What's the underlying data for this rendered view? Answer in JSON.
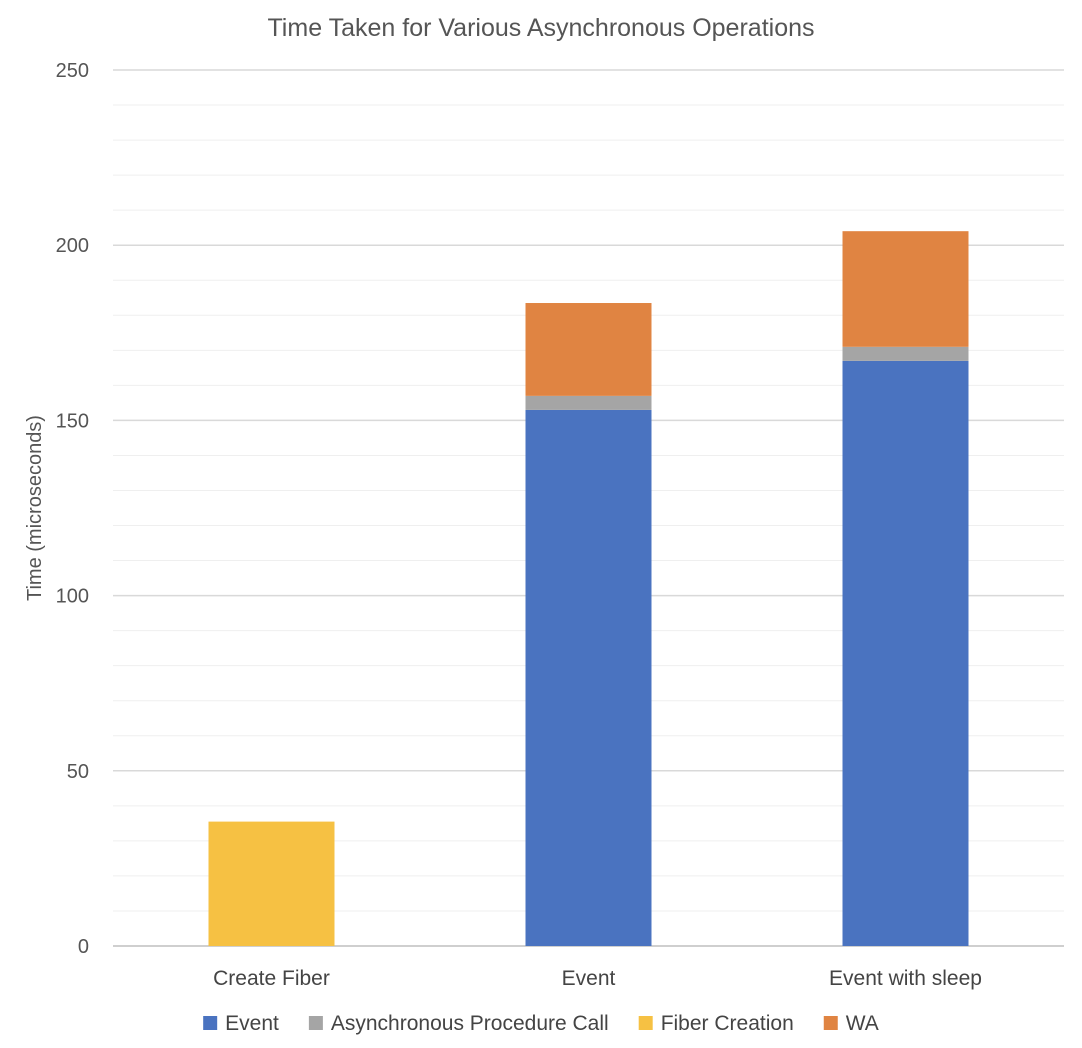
{
  "chart_data": {
    "type": "bar",
    "stacked": true,
    "title": "Time Taken for Various Asynchronous Operations",
    "xlabel": "",
    "ylabel": "Time (microseconds)",
    "ylim": [
      0,
      250
    ],
    "major_tick_step": 50,
    "minor_tick_step": 10,
    "yticks": [
      0,
      50,
      100,
      150,
      200,
      250
    ],
    "grid": true,
    "legend_position": "bottom",
    "categories": [
      "Create Fiber",
      "Event",
      "Event with sleep"
    ],
    "series": [
      {
        "name": "Event",
        "color": "#4A73C0",
        "values": [
          0,
          153,
          167
        ]
      },
      {
        "name": "Asynchronous Procedure Call",
        "color": "#A5A5A5",
        "values": [
          0,
          4,
          4
        ]
      },
      {
        "name": "Fiber Creation",
        "color": "#F6C143",
        "values": [
          35.5,
          0,
          0
        ]
      },
      {
        "name": "WA",
        "color": "#E08442",
        "values": [
          0,
          26.5,
          33
        ]
      }
    ]
  }
}
